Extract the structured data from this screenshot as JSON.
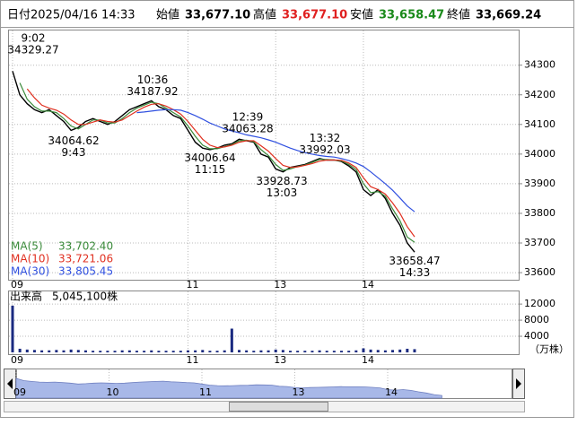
{
  "header": {
    "items": [
      {
        "label": "日付",
        "value": "2025/04/16 14:33",
        "color": "#000000"
      },
      {
        "label": "始値",
        "value": "33,677.10",
        "color": "#000000"
      },
      {
        "label": "高値",
        "value": "33,677.10",
        "color": "#e02020"
      },
      {
        "label": "安値",
        "value": "33,658.47",
        "color": "#1a8a1a"
      },
      {
        "label": "終値",
        "value": "33,669.24",
        "color": "#000000"
      }
    ]
  },
  "chart_data": [
    {
      "type": "line",
      "categories": [
        "09",
        null,
        null,
        null,
        null,
        null,
        null,
        null,
        null,
        null,
        null,
        null,
        null,
        null,
        null,
        null,
        null,
        null,
        null,
        null,
        null,
        null,
        null,
        null,
        "11",
        null,
        null,
        null,
        null,
        null,
        null,
        null,
        null,
        null,
        null,
        null,
        "13",
        null,
        null,
        null,
        null,
        null,
        null,
        null,
        null,
        null,
        null,
        null,
        "14",
        null,
        null,
        null,
        null,
        null,
        null,
        null
      ],
      "series": [
        {
          "color": "#000000",
          "values": [
            34280,
            34200,
            34170,
            34150,
            34140,
            34150,
            34130,
            34110,
            34080,
            34090,
            34110,
            34120,
            34110,
            34100,
            34110,
            34130,
            34150,
            34160,
            34170,
            34180,
            34160,
            34150,
            34130,
            34120,
            34080,
            34040,
            34020,
            34015,
            34020,
            34030,
            34035,
            34050,
            34045,
            34040,
            34000,
            33990,
            33950,
            33940,
            33955,
            33960,
            33965,
            33975,
            33985,
            33980,
            33980,
            33975,
            33960,
            33940,
            33880,
            33860,
            33880,
            33850,
            33800,
            33760,
            33700,
            33669.24
          ]
        },
        {
          "name": "MA(5)",
          "legend_value": "33,702.40",
          "color": "#3a8a3a",
          "values": [
            null,
            34240,
            34185,
            34160,
            34145,
            34145,
            34140,
            34120,
            34095,
            34085,
            34100,
            34115,
            34115,
            34105,
            34105,
            34120,
            34140,
            34155,
            34165,
            34175,
            34170,
            34155,
            34140,
            34125,
            34095,
            34060,
            34030,
            34018,
            34018,
            34025,
            34032,
            34045,
            34047,
            34042,
            34015,
            33995,
            33965,
            33945,
            33950,
            33958,
            33963,
            33972,
            33982,
            33982,
            33980,
            33977,
            33965,
            33948,
            33900,
            33870,
            33873,
            33858,
            33815,
            33775,
            33720,
            33702.4
          ]
        },
        {
          "name": "MA(10)",
          "legend_value": "33,721.06",
          "color": "#e03020",
          "values": [
            null,
            null,
            34220,
            34190,
            34165,
            34155,
            34148,
            34135,
            34115,
            34100,
            34100,
            34108,
            34115,
            34110,
            34108,
            34115,
            34130,
            34145,
            34158,
            34168,
            34170,
            34162,
            34150,
            34135,
            34110,
            34080,
            34050,
            34030,
            34022,
            34024,
            34030,
            34040,
            34045,
            34045,
            34028,
            34010,
            33985,
            33962,
            33955,
            33957,
            33962,
            33968,
            33976,
            33980,
            33980,
            33979,
            33970,
            33955,
            33920,
            33890,
            33880,
            33865,
            33835,
            33800,
            33755,
            33721.06
          ]
        },
        {
          "name": "MA(30)",
          "legend_value": "33,805.45",
          "color": "#3050e0",
          "values": [
            null,
            null,
            null,
            null,
            null,
            null,
            null,
            null,
            null,
            null,
            null,
            null,
            null,
            null,
            null,
            null,
            null,
            34140,
            34142,
            34145,
            34148,
            34150,
            34150,
            34148,
            34140,
            34130,
            34118,
            34105,
            34095,
            34085,
            34078,
            34072,
            34065,
            34060,
            34055,
            34048,
            34040,
            34030,
            34020,
            34012,
            34005,
            34000,
            33995,
            33992,
            33990,
            33985,
            33978,
            33970,
            33958,
            33940,
            33920,
            33900,
            33878,
            33852,
            33825,
            33805.45
          ]
        }
      ],
      "ylim": [
        33576,
        34408
      ],
      "yticks": [
        33600,
        33700,
        33800,
        33900,
        34000,
        34100,
        34200,
        34300
      ],
      "grid": true,
      "annotations": [
        {
          "time": "9:02",
          "value": 34329.27,
          "position": "above"
        },
        {
          "time": "10:36",
          "value": 34187.92,
          "position": "above"
        },
        {
          "time": "9:43",
          "value": 34064.62,
          "position": "below"
        },
        {
          "time": "12:39",
          "value": 34063.28,
          "position": "above"
        },
        {
          "time": "11:15",
          "value": 34006.64,
          "position": "below"
        },
        {
          "time": "13:32",
          "value": 33992.03,
          "position": "above"
        },
        {
          "time": "13:03",
          "value": 33928.73,
          "position": "below"
        },
        {
          "time": "14:33",
          "value": 33658.47,
          "position": "below"
        }
      ]
    },
    {
      "type": "bar",
      "title": "出来高",
      "subtitle": "5,045,100株",
      "unit": "（万株）",
      "categories": [
        "09",
        null,
        null,
        null,
        null,
        null,
        null,
        null,
        null,
        null,
        null,
        null,
        null,
        null,
        null,
        null,
        null,
        null,
        null,
        null,
        null,
        null,
        null,
        null,
        "11",
        null,
        null,
        null,
        null,
        null,
        null,
        null,
        null,
        null,
        null,
        null,
        "13",
        null,
        null,
        null,
        null,
        null,
        null,
        null,
        null,
        null,
        null,
        null,
        "14",
        null,
        null,
        null,
        null,
        null,
        null,
        null
      ],
      "values": [
        11600,
        900,
        700,
        600,
        500,
        500,
        600,
        500,
        700,
        600,
        500,
        400,
        400,
        400,
        400,
        500,
        500,
        400,
        400,
        500,
        400,
        400,
        400,
        400,
        500,
        500,
        600,
        400,
        400,
        500,
        5900,
        600,
        500,
        400,
        500,
        500,
        700,
        600,
        400,
        400,
        400,
        400,
        500,
        400,
        400,
        400,
        400,
        500,
        1000,
        700,
        600,
        500,
        600,
        700,
        900,
        800
      ],
      "color": "#1a2a80",
      "ylim": [
        0,
        14700
      ],
      "yticks": [
        4000,
        8000,
        12000
      ],
      "grid": true
    },
    {
      "type": "area",
      "color": "#a8b8e8",
      "categories": [
        "09",
        null,
        null,
        null,
        null,
        null,
        null,
        null,
        null,
        null,
        null,
        null,
        "10",
        null,
        null,
        null,
        null,
        null,
        null,
        null,
        null,
        null,
        null,
        null,
        "11",
        null,
        null,
        null,
        null,
        null,
        null,
        null,
        null,
        null,
        null,
        null,
        "13",
        null,
        null,
        null,
        null,
        null,
        null,
        null,
        null,
        null,
        null,
        null,
        "14",
        null,
        null,
        null,
        null,
        null,
        null,
        null
      ]
    }
  ]
}
